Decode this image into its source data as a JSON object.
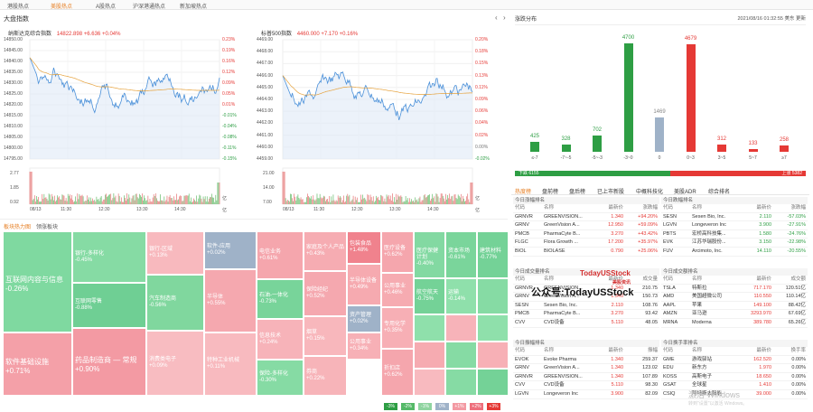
{
  "topnav": {
    "tabs": [
      "港股热点",
      "美股热点",
      "A股热点",
      "沪深港通热点",
      "新加坡热点"
    ],
    "active": 1
  },
  "index_section": {
    "title": "大盘指数"
  },
  "charts": [
    {
      "name": "纳斯达克综合指数",
      "price": "14822.898",
      "change": "+6.636",
      "pct": "+0.04%",
      "y_labels": [
        "14850.00",
        "14845.00",
        "14840.00",
        "14835.00",
        "14830.00",
        "14825.00",
        "14820.00",
        "14815.00",
        "14810.00",
        "14805.00",
        "14800.00",
        "14795.00"
      ],
      "pct_labels": [
        "0.23%",
        "0.19%",
        "0.16%",
        "0.12%",
        "0.09%",
        "0.05%",
        "0.01%",
        "-0.01%",
        "-0.04%",
        "-0.08%",
        "-0.11%",
        "-0.15%"
      ],
      "vol_labels": [
        "2.77",
        "1.85",
        "0.92"
      ],
      "vol_unit": "亿",
      "x_labels": [
        "08/13",
        "11:30",
        "12:30",
        "13:30",
        "14:30",
        "亿"
      ]
    },
    {
      "name": "标普500指数",
      "price": "4460.000",
      "change": "+7.170",
      "pct": "+0.16%",
      "y_labels": [
        "4469.00",
        "4468.00",
        "4467.00",
        "4466.00",
        "4465.00",
        "4464.00",
        "4463.00",
        "4462.00",
        "4461.00",
        "4460.00",
        "4459.00"
      ],
      "pct_labels": [
        "0.20%",
        "0.18%",
        "0.15%",
        "0.13%",
        "0.11%",
        "0.09%",
        "0.06%",
        "0.04%",
        "0.02%",
        "0.00%",
        "-0.02%"
      ],
      "vol_labels": [
        "21.00",
        "14.00",
        "7.00"
      ],
      "vol_unit": "亿",
      "x_labels": [
        "08/13",
        "11:30",
        "12:30",
        "13:30",
        "14:30",
        "亿"
      ]
    }
  ],
  "heatmap_section": {
    "tabs": [
      "板块热力图",
      "领涨板块"
    ]
  },
  "heatmap": [
    {
      "name": "互联网内容与信息",
      "pct": "-0.26%",
      "c": "#7fd9a0"
    },
    {
      "name": "软件基础设施",
      "pct": "+0.71%",
      "c": "#f4a0a8"
    },
    {
      "name": "银行-多样化",
      "pct": "-0.45%",
      "c": "#86dba4"
    },
    {
      "name": "互联网零售",
      "pct": "-0.88%",
      "c": "#6fcf94"
    },
    {
      "name": "药品制造商 — 常规",
      "pct": "+0.90%",
      "c": "#f39aa3"
    },
    {
      "name": "银行-区域",
      "pct": "+0.13%",
      "c": "#f8b9be"
    },
    {
      "name": "汽车制造商",
      "pct": "-0.56%",
      "c": "#80d79e"
    },
    {
      "name": "消费类电子",
      "pct": "+0.09%",
      "c": "#f8bcc1"
    },
    {
      "name": "软件-应用",
      "pct": "+0.02%",
      "c": "#9fb2c8"
    },
    {
      "name": "半导体",
      "pct": "+0.55%",
      "c": "#f5a8af"
    },
    {
      "name": "特种工业机械",
      "pct": "+0.11%",
      "c": "#f8babf"
    },
    {
      "name": "电信业务",
      "pct": "+0.61%",
      "c": "#f5a6ad"
    },
    {
      "name": "石油-一体化",
      "pct": "-0.73%",
      "c": "#78d49a"
    },
    {
      "name": "信息技术",
      "pct": "+0.24%",
      "c": "#f7b3b9"
    },
    {
      "name": "保险-多样化",
      "pct": "-0.30%",
      "c": "#86dba4"
    },
    {
      "name": "家庭及个人产品",
      "pct": "+0.43%",
      "c": "#f6acb2"
    },
    {
      "name": "保险经纪",
      "pct": "+0.52%",
      "c": "#f5a8af"
    },
    {
      "name": "烟草",
      "pct": "+0.15%",
      "c": "#f8b7bc"
    },
    {
      "name": "券商",
      "pct": "+0.22%",
      "c": "#f7b4b9"
    },
    {
      "name": "包装食品",
      "pct": "+1.48%",
      "c": "#f0828d"
    },
    {
      "name": "半导体设备",
      "pct": "+0.49%",
      "c": "#f6aab0"
    },
    {
      "name": "资产管理",
      "pct": "+0.02%",
      "c": "#9fb2c8"
    },
    {
      "name": "公用事业",
      "pct": "+0.34%",
      "c": "#f7b0b6"
    },
    {
      "name": "医疗设备",
      "pct": "+0.62%",
      "c": "#f5a6ad"
    },
    {
      "name": "公用事业",
      "pct": "+0.46%",
      "c": "#f6abb1"
    },
    {
      "name": "专用化学",
      "pct": "+0.35%",
      "c": "#f7afb5"
    },
    {
      "name": "折扣店",
      "pct": "+0.62%",
      "c": "#f5a6ad"
    },
    {
      "name": "医疗保健计划",
      "pct": "-0.40%",
      "c": "#83d9a2"
    },
    {
      "name": "航空航天",
      "pct": "-0.75%",
      "c": "#74d297"
    },
    {
      "name": "资本市场",
      "pct": "-0.61%",
      "c": "#7ad59b"
    },
    {
      "name": "运输",
      "pct": "-0.14%",
      "c": "#8fe0ab"
    },
    {
      "name": "建筑材料",
      "pct": "-0.77%",
      "c": "#74d297"
    }
  ],
  "legend": [
    "-3%",
    "-2%",
    "-1%",
    "0%",
    "+1%",
    "+2%",
    "+3%"
  ],
  "dist": {
    "title": "涨跌分布",
    "time": "2021/08/16 01:32:55 美东 更新",
    "bars": [
      {
        "label": "≤-7",
        "value": 425
      },
      {
        "label": "-7~-5",
        "value": 328
      },
      {
        "label": "-5~-3",
        "value": 702
      },
      {
        "label": "-3~0",
        "value": 4700
      },
      {
        "label": "0",
        "value": 1469
      },
      {
        "label": "0~3",
        "value": 4679
      },
      {
        "label": "3~5",
        "value": 312
      },
      {
        "label": "5~7",
        "value": 133
      },
      {
        "label": "≥7",
        "value": 258
      }
    ],
    "down": "下跌 6155",
    "up": "上涨 5382"
  },
  "rtabs": [
    "热度榜",
    "盘前榜",
    "盘后榜",
    "已上市新股",
    "中概科技化",
    "美股ADR",
    "综合排名"
  ],
  "tables": {
    "left": [
      {
        "title": "今日涨幅排名",
        "headers": [
          "代码",
          "名称",
          "最新价",
          "涨跌幅"
        ],
        "rows": [
          [
            "GRNVR",
            "GREENVISION...",
            "1.340",
            "+94.20%"
          ],
          [
            "GRNV",
            "GreenVision A...",
            "12.950",
            "+59.09%"
          ],
          [
            "PMCB",
            "PharmaCyte B...",
            "3.270",
            "+43.42%"
          ],
          [
            "FLGC",
            "Flora Growth ...",
            "17.200",
            "+35.97%"
          ],
          [
            "BIOL",
            "BIOLASE",
            "0.790",
            "+25.06%"
          ]
        ]
      },
      {
        "title": "今日成交量排名",
        "headers": [
          "代码",
          "名称",
          "最新价",
          "成交量"
        ],
        "rows": [
          [
            "GRNVR",
            "GREENVISION...",
            "1.340",
            "210.75"
          ],
          [
            "GRNV",
            "GreenVision A...",
            "1.340",
            "150.73"
          ],
          [
            "SESN",
            "Sesen Bio, Inc.",
            "2.110",
            "108.76"
          ],
          [
            "PMCB",
            "PharmaCyte B...",
            "3.270",
            "93.42"
          ],
          [
            "CVV",
            "CVD设备",
            "5.110",
            "48.05"
          ]
        ]
      },
      {
        "title": "今日振幅排名",
        "headers": [
          "代码",
          "名称",
          "最新价",
          "振幅"
        ],
        "rows": [
          [
            "EVOK",
            "Evoke Pharma",
            "1.340",
            "259.37"
          ],
          [
            "GRNV",
            "GreenVision A...",
            "1.340",
            "123.02"
          ],
          [
            "GRNVR",
            "GREENVISION...",
            "1.340",
            "107.89"
          ],
          [
            "CVV",
            "CVD设备",
            "5.110",
            "98.30"
          ],
          [
            "LGVN",
            "Longeveron Inc",
            "3.900",
            "82.09"
          ]
        ]
      }
    ],
    "right": [
      {
        "title": "今日跌幅排名",
        "headers": [
          "代码",
          "名称",
          "最新价",
          "涨跌幅"
        ],
        "rows": [
          [
            "SESN",
            "Sesen Bio, Inc.",
            "2.110",
            "-57.03%"
          ],
          [
            "LGVN",
            "Longeveron Inc",
            "3.900",
            "-27.91%"
          ],
          [
            "PBTS",
            "宏桥高科技集...",
            "1.580",
            "-24.76%"
          ],
          [
            "EVK",
            "江苏华瑞股份...",
            "3.150",
            "-22.98%"
          ],
          [
            "FUV",
            "Arcimoto, Inc.",
            "14.110",
            "-20.55%"
          ]
        ]
      },
      {
        "title": "今日成交额排名",
        "headers": [
          "代码",
          "名称",
          "最新价",
          "成交额"
        ],
        "rows": [
          [
            "TSLA",
            "特斯拉",
            "717.170",
            "120.51亿"
          ],
          [
            "AMD",
            "美国超微公司",
            "110.550",
            "110.14亿"
          ],
          [
            "AAPL",
            "苹果",
            "149.100",
            "88.42亿"
          ],
          [
            "AMZN",
            "亚马逊",
            "3293.970",
            "67.69亿"
          ],
          [
            "MRNA",
            "Moderna",
            "389.780",
            "65.26亿"
          ]
        ]
      },
      {
        "title": "今日换手率排名",
        "headers": [
          "代码",
          "名称",
          "最新价",
          "换手率"
        ],
        "rows": [
          [
            "GME",
            "游戏驿站",
            "162.520",
            "0.00%"
          ],
          [
            "EDU",
            "新东方",
            "1.970",
            "0.00%"
          ],
          [
            "KOSS",
            "高斯电子",
            "18.650",
            "0.00%"
          ],
          [
            "GSAT",
            "全球星",
            "1.410",
            "0.00%"
          ],
          [
            "CSIQ",
            "阿特斯太阳能",
            "39.000",
            "0.00%"
          ]
        ]
      }
    ]
  },
  "watermark": {
    "a": "TodayUSStock",
    "b": "公众号:TodayUSStock",
    "c": "美股资讯",
    "win": "激活 Windows",
    "win2": "转到\"设置\"以激活 Windows。"
  }
}
